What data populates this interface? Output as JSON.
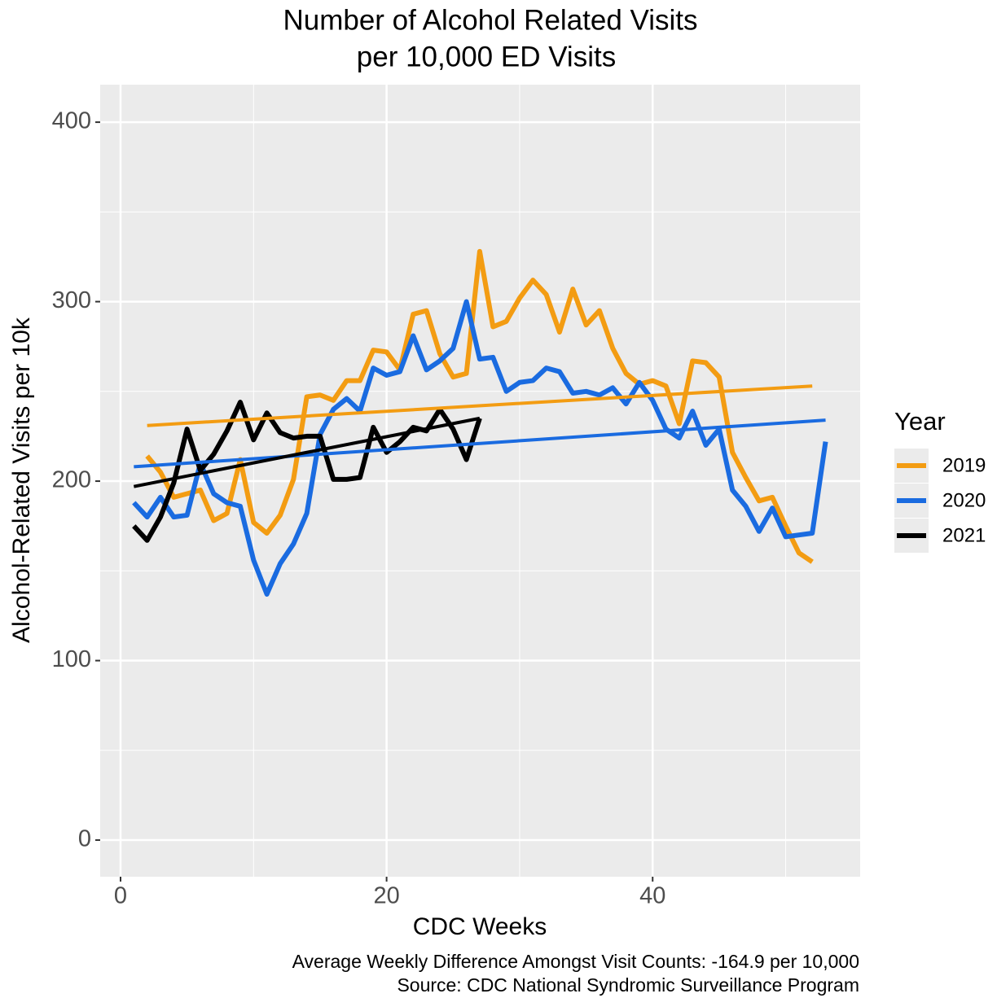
{
  "chart_data": {
    "type": "line",
    "title": [
      "Number of Alcohol Related Visits",
      "per 10,000 ED Visits"
    ],
    "x_label": "CDC Weeks",
    "y_label": "Alcohol-Related Visits per 10k",
    "caption": [
      "Average Weekly Difference Amongst Visit Counts: -164.9 per 10,000",
      "Source: CDC National Syndromic Surveillance Program"
    ],
    "legend_title": "Year",
    "legend_position": "right",
    "grid": true,
    "xlim": [
      -1.53,
      55.6
    ],
    "ylim": [
      -20.4,
      420.9
    ],
    "xticks": [
      0,
      20,
      40
    ],
    "yticks": [
      0,
      100,
      200,
      300,
      400
    ],
    "x_minor_grid": [
      10,
      30,
      50
    ],
    "y_minor_grid": [
      50,
      150,
      250,
      350
    ],
    "series": [
      {
        "name": "2019",
        "color": "#f39c12",
        "x": [
          2,
          3,
          4,
          5,
          6,
          7,
          8,
          9,
          10,
          11,
          12,
          13,
          14,
          15,
          16,
          17,
          18,
          19,
          20,
          21,
          22,
          23,
          24,
          25,
          26,
          27,
          28,
          29,
          30,
          31,
          32,
          33,
          34,
          35,
          36,
          37,
          38,
          39,
          40,
          41,
          42,
          43,
          44,
          45,
          46,
          47,
          48,
          49,
          50,
          51,
          52
        ],
        "values": [
          214,
          205,
          191,
          193,
          195,
          178,
          182,
          212,
          177,
          171,
          181,
          201,
          247,
          248,
          245,
          256,
          256,
          273,
          272,
          262,
          293,
          295,
          271,
          258,
          260,
          328,
          286,
          289,
          302,
          312,
          304,
          283,
          307,
          287,
          295,
          274,
          260,
          254,
          256,
          253,
          232,
          267,
          266,
          258,
          216,
          202,
          189,
          191,
          175,
          160,
          155
        ],
        "trend_x": [
          2,
          52
        ],
        "trend_y": [
          231,
          253
        ]
      },
      {
        "name": "2020",
        "color": "#1a6be0",
        "x": [
          1,
          2,
          3,
          4,
          5,
          6,
          7,
          8,
          9,
          10,
          11,
          12,
          13,
          14,
          15,
          16,
          17,
          18,
          19,
          20,
          21,
          22,
          23,
          24,
          25,
          26,
          27,
          28,
          29,
          30,
          31,
          32,
          33,
          34,
          35,
          36,
          37,
          38,
          39,
          40,
          41,
          42,
          43,
          44,
          45,
          46,
          47,
          48,
          49,
          50,
          51,
          52,
          53
        ],
        "values": [
          188,
          180,
          191,
          180,
          181,
          210,
          193,
          188,
          186,
          156,
          137,
          154,
          165,
          182,
          226,
          240,
          246,
          239,
          263,
          259,
          261,
          281,
          262,
          267,
          274,
          300,
          268,
          269,
          250,
          255,
          256,
          263,
          261,
          249,
          250,
          248,
          252,
          243,
          255,
          245,
          229,
          224,
          239,
          220,
          229,
          195,
          186,
          172,
          185,
          169,
          170,
          171,
          222
        ],
        "trend_x": [
          1,
          53
        ],
        "trend_y": [
          208,
          234
        ]
      },
      {
        "name": "2021",
        "color": "#000000",
        "x": [
          1,
          2,
          3,
          4,
          5,
          6,
          7,
          8,
          9,
          10,
          11,
          12,
          13,
          14,
          15,
          16,
          17,
          18,
          19,
          20,
          21,
          22,
          23,
          24,
          25,
          26,
          27
        ],
        "values": [
          175,
          167,
          180,
          199,
          229,
          206,
          215,
          228,
          244,
          223,
          238,
          227,
          224,
          225,
          225,
          201,
          201,
          202,
          230,
          216,
          222,
          230,
          228,
          240,
          229,
          212,
          235
        ],
        "trend_x": [
          1,
          27
        ],
        "trend_y": [
          197,
          235
        ]
      }
    ]
  }
}
